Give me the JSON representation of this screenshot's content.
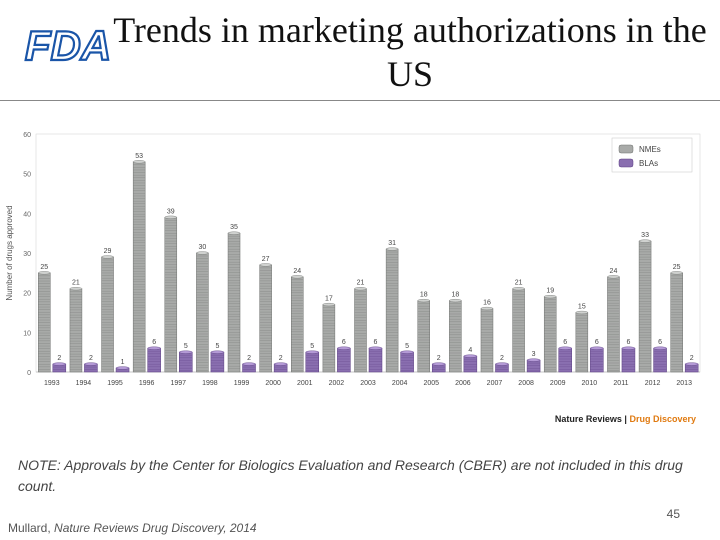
{
  "slide": {
    "title": "Trends in marketing authorizations in the US",
    "logo_text": "FDA",
    "source_prefix": "Nature Reviews",
    "source_sep": "|",
    "source_journal": "Drug Discovery",
    "note": "NOTE: Approvals by the Center for Biologics Evaluation and Research (CBER) are not included in this drug count.",
    "citation_author": "Mullard,",
    "citation_rest": "Nature Reviews Drug Discovery, 2014",
    "page_number": "45"
  },
  "colors": {
    "nme": "#a8aaa8",
    "bla": "#8a6fb0",
    "logo": "#1a55a8",
    "plot_bg": "#ffffff"
  },
  "chart_data": {
    "type": "bar",
    "ylabel": "Number of drugs approved",
    "ylim": [
      0,
      60
    ],
    "yticks": [
      0,
      10,
      20,
      30,
      40,
      50,
      60
    ],
    "legend_position": "top-right",
    "categories": [
      "1993",
      "1994",
      "1995",
      "1996",
      "1997",
      "1998",
      "1999",
      "2000",
      "2001",
      "2002",
      "2003",
      "2004",
      "2005",
      "2006",
      "2007",
      "2008",
      "2009",
      "2010",
      "2011",
      "2012",
      "2013"
    ],
    "series": [
      {
        "name": "NMEs",
        "values": [
          25,
          21,
          29,
          53,
          39,
          30,
          35,
          27,
          24,
          17,
          21,
          31,
          18,
          18,
          16,
          21,
          19,
          15,
          24,
          33,
          25
        ]
      },
      {
        "name": "BLAs",
        "values": [
          2,
          2,
          1,
          6,
          5,
          5,
          2,
          2,
          5,
          6,
          6,
          5,
          2,
          4,
          2,
          3,
          6,
          6,
          6,
          6,
          2
        ]
      }
    ]
  }
}
